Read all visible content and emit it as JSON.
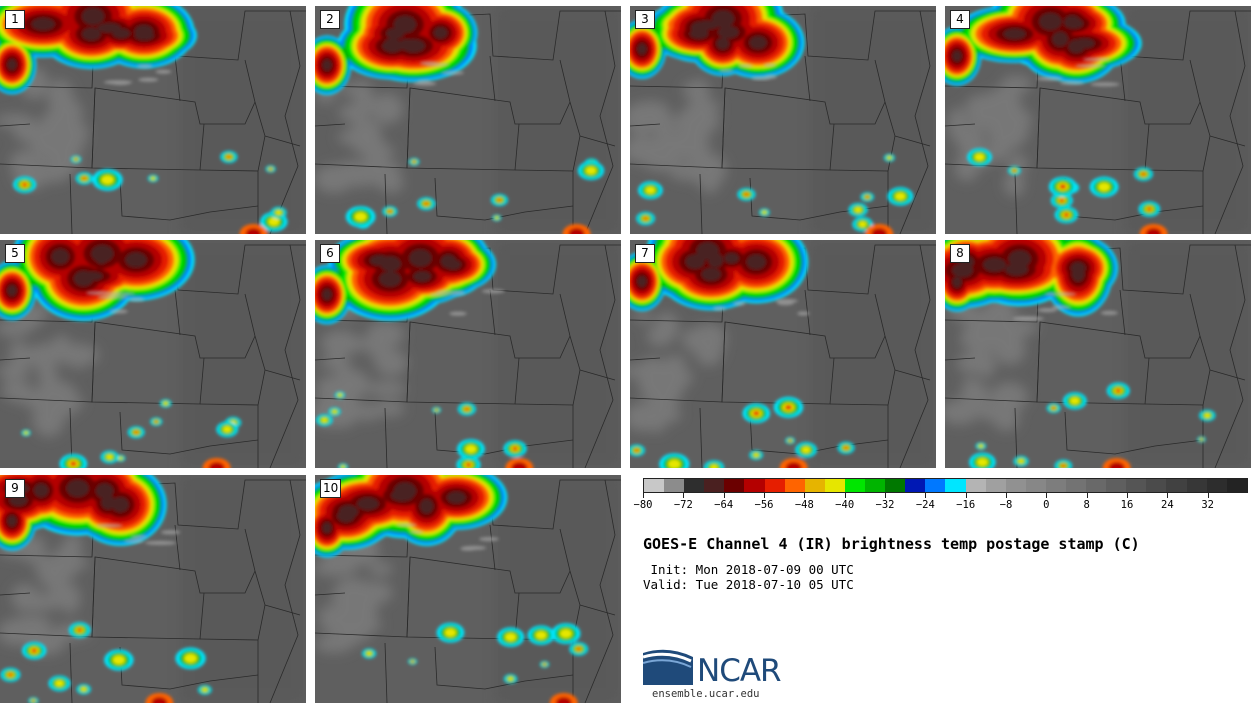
{
  "panels": [
    {
      "label": "1",
      "seed": 11
    },
    {
      "label": "2",
      "seed": 23
    },
    {
      "label": "3",
      "seed": 37
    },
    {
      "label": "4",
      "seed": 41
    },
    {
      "label": "5",
      "seed": 53
    },
    {
      "label": "6",
      "seed": 67
    },
    {
      "label": "7",
      "seed": 71
    },
    {
      "label": "8",
      "seed": 83
    },
    {
      "label": "9",
      "seed": 97
    },
    {
      "label": "10",
      "seed": 101
    }
  ],
  "colorbar": {
    "colors": [
      "#c8c8c8",
      "#8c8c8c",
      "#2e2e2e",
      "#4a2020",
      "#6b0000",
      "#b40000",
      "#e61e00",
      "#ff6400",
      "#e6b400",
      "#e6e600",
      "#00e600",
      "#00b400",
      "#007800",
      "#0018b4",
      "#0078ff",
      "#00e6ff",
      "#b4b4b4",
      "#a0a0a0",
      "#919191",
      "#878787",
      "#7d7d7d",
      "#737373",
      "#696969",
      "#5f5f5f",
      "#555555",
      "#4b4b4b",
      "#414141",
      "#373737",
      "#2d2d2d",
      "#232323"
    ],
    "min": -80,
    "max": 40,
    "tick_labels": [
      "−80",
      "−72",
      "−64",
      "−56",
      "−48",
      "−40",
      "−32",
      "−24",
      "−16",
      "−8",
      "0",
      "8",
      "16",
      "24",
      "32"
    ],
    "tick_values": [
      -80,
      -72,
      -64,
      -56,
      -48,
      -40,
      -32,
      -24,
      -16,
      -8,
      0,
      8,
      16,
      24,
      32
    ]
  },
  "title": "GOES-E Channel 4 (IR) brightness temp postage stamp (C)",
  "init": " Init: Mon 2018-07-09 00 UTC",
  "valid": "Valid: Tue 2018-07-10 05 UTC",
  "logo": {
    "name": "NCAR",
    "url": "ensemble.ucar.edu",
    "color": "#1f4a7a"
  }
}
